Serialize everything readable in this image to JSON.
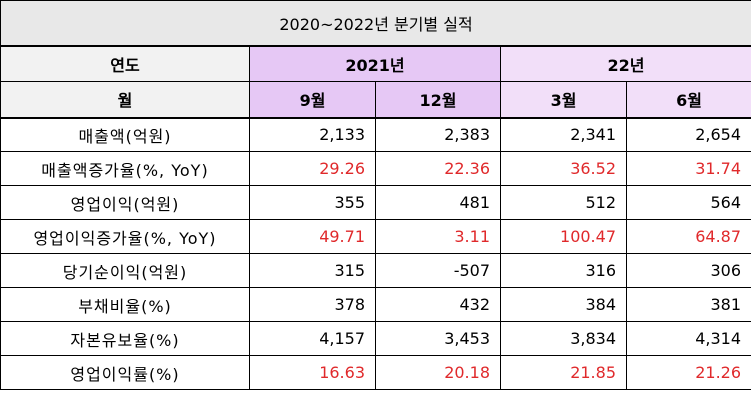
{
  "title": "2020~2022년 분기별 실적",
  "header": {
    "year_label": "연도",
    "month_label": "월",
    "years": [
      {
        "label": "2021년",
        "months": [
          "9월",
          "12월"
        ]
      },
      {
        "label": "22년",
        "months": [
          "3월",
          "6월"
        ]
      }
    ]
  },
  "rows": [
    {
      "label": "매출액(억원)",
      "values": [
        "2,133",
        "2,383",
        "2,341",
        "2,654"
      ],
      "highlight": false
    },
    {
      "label": "매출액증가율(%, YoY)",
      "values": [
        "29.26",
        "22.36",
        "36.52",
        "31.74"
      ],
      "highlight": true
    },
    {
      "label": "영업이익(억원)",
      "values": [
        "355",
        "481",
        "512",
        "564"
      ],
      "highlight": false
    },
    {
      "label": "영업이익증가율(%, YoY)",
      "values": [
        "49.71",
        "3.11",
        "100.47",
        "64.87"
      ],
      "highlight": true
    },
    {
      "label": "당기순이익(억원)",
      "values": [
        "315",
        "-507",
        "316",
        "306"
      ],
      "highlight": false
    },
    {
      "label": "부채비율(%)",
      "values": [
        "378",
        "432",
        "384",
        "381"
      ],
      "highlight": false
    },
    {
      "label": "자본유보율(%)",
      "values": [
        "4,157",
        "3,453",
        "3,834",
        "4,314"
      ],
      "highlight": false
    },
    {
      "label": "영업이익률(%)",
      "values": [
        "16.63",
        "20.18",
        "21.85",
        "21.26"
      ],
      "highlight": true
    }
  ],
  "colors": {
    "title_bg": "#e8e8e8",
    "header_2021_bg": "#e6c8f5",
    "header_2022_bg": "#f2dff9",
    "highlight_text": "#e0292b"
  }
}
